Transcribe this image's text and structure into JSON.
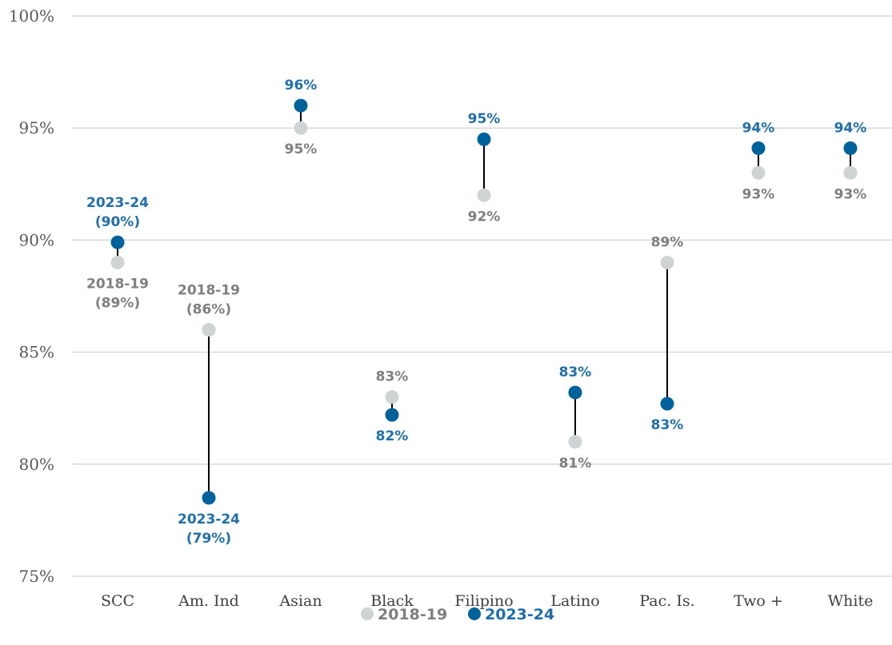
{
  "chart_data": {
    "type": "dumbbell",
    "title": "",
    "xlabel": "",
    "ylabel": "",
    "ylim": [
      75,
      100
    ],
    "yticks": [
      "75%",
      "80%",
      "85%",
      "90%",
      "95%",
      "100%"
    ],
    "grid": true,
    "legend_position": "bottom-center",
    "categories": [
      "SCC",
      "Am. Ind",
      "Asian",
      "Black",
      "Filipino",
      "Latino",
      "Pac. Is.",
      "Two +",
      "White"
    ],
    "series": [
      {
        "name": "2018-19",
        "color": "#d0d3d4",
        "label_color": "#7f7f7f",
        "values": [
          89,
          86,
          95,
          83,
          92,
          81,
          89,
          93,
          93
        ],
        "labels": [
          [
            "2018-19",
            "(89%)"
          ],
          [
            "2018-19",
            "(86%)"
          ],
          [
            "95%"
          ],
          [
            "83%"
          ],
          [
            "92%"
          ],
          [
            "81%"
          ],
          [
            "89%"
          ],
          [
            "93%"
          ],
          [
            "93%"
          ]
        ]
      },
      {
        "name": "2023-24",
        "color": "#00629b",
        "label_color": "#1f6fab",
        "values": [
          89.9,
          78.5,
          96,
          82.2,
          94.5,
          83.2,
          82.7,
          94.1,
          94.1
        ],
        "labels": [
          [
            "2023-24",
            "(90%)"
          ],
          [
            "2023-24",
            "(79%)"
          ],
          [
            "96%"
          ],
          [
            "82%"
          ],
          [
            "95%"
          ],
          [
            "83%"
          ],
          [
            "83%"
          ],
          [
            "94%"
          ],
          [
            "94%"
          ]
        ]
      }
    ],
    "connector_color": "#000000",
    "grid_color": "#d9d9d9"
  }
}
